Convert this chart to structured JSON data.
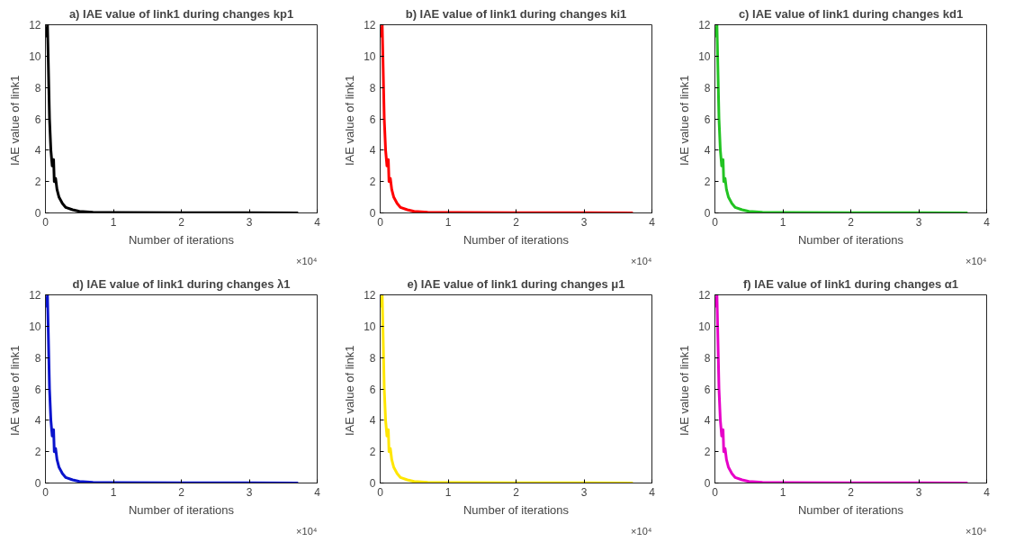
{
  "chart_data": [
    {
      "type": "line",
      "title": "a) IAE value of link1 during changes kp1",
      "xlabel": "Number of iterations",
      "ylabel": "IAE value of  link1",
      "annotations": [
        "×10⁴"
      ],
      "xlim": [
        0,
        4
      ],
      "ylim": [
        0,
        12
      ],
      "xticks": [
        0,
        1,
        2,
        3,
        4
      ],
      "yticks": [
        0,
        2,
        4,
        6,
        8,
        10,
        12
      ],
      "line_style": "solid",
      "series": [
        {
          "color": "#000000",
          "x": [
            0,
            0.01,
            0.02,
            0.03,
            0.04,
            0.06,
            0.08,
            0.1,
            0.12,
            0.13,
            0.15,
            0.17,
            0.2,
            0.25,
            0.3,
            0.4,
            0.5,
            0.7,
            1,
            2,
            3,
            3.72
          ],
          "values": [
            11.2,
            11.8,
            11.3,
            12,
            10,
            6,
            4,
            3,
            3.4,
            2,
            2.2,
            1.5,
            1,
            0.6,
            0.35,
            0.2,
            0.1,
            0.05,
            0.03,
            0.01,
            0.01,
            0
          ]
        }
      ]
    },
    {
      "type": "line",
      "title": "b) IAE value of link1 during changes ki1",
      "xlabel": "Number of iterations",
      "ylabel": "IAE value of  link1",
      "annotations": [
        "×10⁴"
      ],
      "xlim": [
        0,
        4
      ],
      "ylim": [
        0,
        12
      ],
      "xticks": [
        0,
        1,
        2,
        3,
        4
      ],
      "yticks": [
        0,
        2,
        4,
        6,
        8,
        10,
        12
      ],
      "line_style": "solid",
      "series": [
        {
          "color": "#ff0000",
          "x": [
            0,
            0.01,
            0.02,
            0.03,
            0.04,
            0.06,
            0.08,
            0.1,
            0.12,
            0.13,
            0.15,
            0.17,
            0.2,
            0.25,
            0.3,
            0.4,
            0.5,
            0.7,
            1,
            2,
            3,
            3.72
          ],
          "values": [
            11.2,
            11.8,
            11.3,
            12,
            10,
            6,
            4,
            3,
            3.4,
            2,
            2.2,
            1.5,
            1,
            0.6,
            0.35,
            0.2,
            0.1,
            0.05,
            0.03,
            0.01,
            0.01,
            0
          ]
        }
      ]
    },
    {
      "type": "line",
      "title": "c) IAE value of link1 during changes kd1",
      "xlabel": "Number of iterations",
      "ylabel": "IAE value of  link1",
      "annotations": [
        "×10⁴"
      ],
      "xlim": [
        0,
        4
      ],
      "ylim": [
        0,
        12
      ],
      "xticks": [
        0,
        1,
        2,
        3,
        4
      ],
      "yticks": [
        0,
        2,
        4,
        6,
        8,
        10,
        12
      ],
      "line_style": "solid",
      "series": [
        {
          "color": "#22c322",
          "x": [
            0,
            0.01,
            0.02,
            0.03,
            0.04,
            0.06,
            0.08,
            0.1,
            0.12,
            0.13,
            0.15,
            0.17,
            0.2,
            0.25,
            0.3,
            0.4,
            0.5,
            0.7,
            1,
            2,
            3,
            3.72
          ],
          "values": [
            11.2,
            11.8,
            11.3,
            12,
            10,
            6,
            4,
            3,
            3.4,
            2,
            2.2,
            1.5,
            1,
            0.6,
            0.35,
            0.2,
            0.1,
            0.05,
            0.03,
            0.01,
            0.01,
            0
          ]
        }
      ]
    },
    {
      "type": "line",
      "title": "d) IAE value of link1 during changes λ1",
      "xlabel": "Number of iterations",
      "ylabel": "IAE value of  link1",
      "annotations": [
        "×10⁴"
      ],
      "xlim": [
        0,
        4
      ],
      "ylim": [
        0,
        12
      ],
      "xticks": [
        0,
        1,
        2,
        3,
        4
      ],
      "yticks": [
        0,
        2,
        4,
        6,
        8,
        10,
        12
      ],
      "line_style": "solid",
      "series": [
        {
          "color": "#0a14cc",
          "x": [
            0,
            0.01,
            0.02,
            0.03,
            0.04,
            0.06,
            0.08,
            0.1,
            0.12,
            0.13,
            0.15,
            0.17,
            0.2,
            0.25,
            0.3,
            0.4,
            0.5,
            0.7,
            1,
            2,
            3,
            3.72
          ],
          "values": [
            11.2,
            11.8,
            11.3,
            12,
            10,
            6,
            4,
            3,
            3.4,
            2,
            2.2,
            1.5,
            1,
            0.6,
            0.35,
            0.2,
            0.1,
            0.05,
            0.03,
            0.01,
            0.01,
            0
          ]
        }
      ]
    },
    {
      "type": "line",
      "title": "e) IAE value of link1 during changes μ1",
      "xlabel": "Number of iterations",
      "ylabel": "IAE value of  link1",
      "annotations": [
        "×10⁴"
      ],
      "xlim": [
        0,
        4
      ],
      "ylim": [
        0,
        12
      ],
      "xticks": [
        0,
        1,
        2,
        3,
        4
      ],
      "yticks": [
        0,
        2,
        4,
        6,
        8,
        10,
        12
      ],
      "line_style": "solid",
      "series": [
        {
          "color": "#ffe600",
          "x": [
            0,
            0.01,
            0.02,
            0.03,
            0.04,
            0.06,
            0.08,
            0.1,
            0.12,
            0.13,
            0.15,
            0.17,
            0.2,
            0.25,
            0.3,
            0.4,
            0.5,
            0.7,
            1,
            2,
            3,
            3.72
          ],
          "values": [
            11.2,
            11.8,
            11.3,
            12,
            10,
            6,
            4,
            3,
            3.4,
            2,
            2.2,
            1.5,
            1,
            0.6,
            0.35,
            0.2,
            0.1,
            0.05,
            0.03,
            0.01,
            0.01,
            0
          ]
        }
      ]
    },
    {
      "type": "line",
      "title": "f) IAE value of link1 during changes α1",
      "xlabel": "Number of iterations",
      "ylabel": "IAE value of  link1",
      "annotations": [
        "×10⁴"
      ],
      "xlim": [
        0,
        4
      ],
      "ylim": [
        0,
        12
      ],
      "xticks": [
        0,
        1,
        2,
        3,
        4
      ],
      "yticks": [
        0,
        2,
        4,
        6,
        8,
        10,
        12
      ],
      "line_style": "solid",
      "series": [
        {
          "color": "#e600c8",
          "x": [
            0,
            0.01,
            0.02,
            0.03,
            0.04,
            0.06,
            0.08,
            0.1,
            0.12,
            0.13,
            0.15,
            0.17,
            0.2,
            0.25,
            0.3,
            0.4,
            0.5,
            0.7,
            1,
            2,
            3,
            3.72
          ],
          "values": [
            11.2,
            11.8,
            11.3,
            12,
            10,
            6,
            4,
            3,
            3.4,
            2,
            2.2,
            1.5,
            1,
            0.6,
            0.35,
            0.2,
            0.1,
            0.05,
            0.03,
            0.01,
            0.01,
            0
          ]
        }
      ]
    }
  ]
}
